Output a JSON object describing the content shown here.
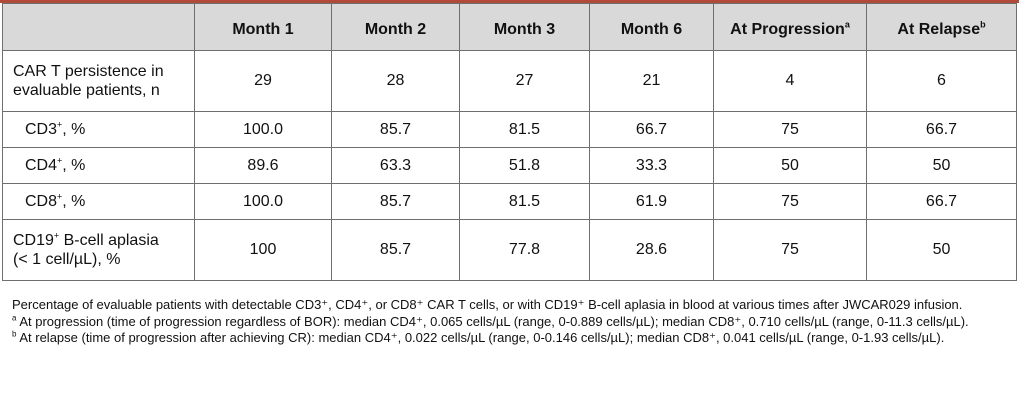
{
  "table": {
    "headers": [
      {
        "text": "",
        "sup": ""
      },
      {
        "text": "Month 1",
        "sup": ""
      },
      {
        "text": "Month 2",
        "sup": ""
      },
      {
        "text": "Month 3",
        "sup": ""
      },
      {
        "text": "Month 6",
        "sup": ""
      },
      {
        "text": "At Progression",
        "sup": "a"
      },
      {
        "text": "At Relapse",
        "sup": "b"
      }
    ],
    "rows": [
      {
        "label_lines": [
          "CAR T persistence in",
          "evaluable patients, n"
        ],
        "values": [
          "29",
          "28",
          "27",
          "21",
          "4",
          "6"
        ]
      },
      {
        "label_prefix": "CD3",
        "label_sup": "+",
        "label_suffix": ", %",
        "values": [
          "100.0",
          "85.7",
          "81.5",
          "66.7",
          "75",
          "66.7"
        ]
      },
      {
        "label_prefix": "CD4",
        "label_sup": "+",
        "label_suffix": ", %",
        "values": [
          "89.6",
          "63.3",
          "51.8",
          "33.3",
          "50",
          "50"
        ]
      },
      {
        "label_prefix": "CD8",
        "label_sup": "+",
        "label_suffix": ", %",
        "values": [
          "100.0",
          "85.7",
          "81.5",
          "61.9",
          "75",
          "66.7"
        ]
      },
      {
        "label_prefix": "CD19",
        "label_sup": "+",
        "label_suffix": " B-cell aplasia",
        "label_line2": "(< 1 cell/µL), %",
        "values": [
          "100",
          "85.7",
          "77.8",
          "28.6",
          "75",
          "50"
        ]
      }
    ]
  },
  "footnotes": {
    "main": "Percentage of evaluable patients with detectable CD3⁺, CD4⁺, or CD8⁺ CAR T cells, or with CD19⁺ B-cell aplasia in blood at various times after JWCAR029 infusion.",
    "a_mark": "a",
    "a_text": " At progression (time of progression regardless of BOR): median CD4⁺, 0.065 cells/µL (range, 0-0.889 cells/µL); median CD8⁺, 0.710 cells/µL (range, 0-11.3 cells/µL).",
    "b_mark": "b",
    "b_text": " At relapse (time of progression after achieving CR): median CD4⁺, 0.022 cells/µL (range, 0-0.146 cells/µL); median CD8⁺, 0.041 cells/µL (range, 0-1.93 cells/µL)."
  }
}
